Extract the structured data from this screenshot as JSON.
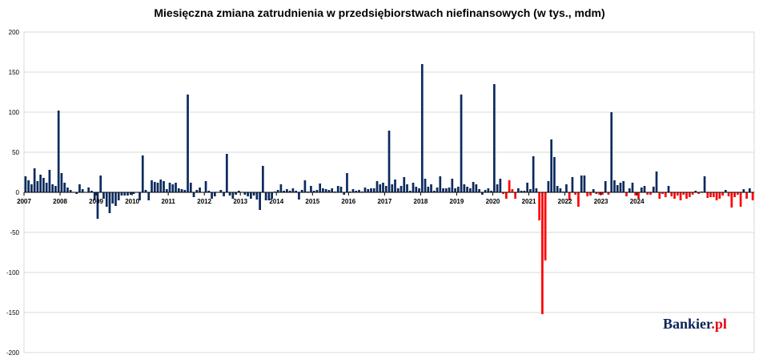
{
  "chart_data": {
    "type": "bar",
    "title": "Miesięczna zmiana zatrudnienia w przedsiębiorstwach niefinansowych (w tys., mdm)",
    "ylim": [
      -200,
      200
    ],
    "yticks": [
      200,
      150,
      100,
      50,
      0,
      -50,
      -100,
      -150,
      -200
    ],
    "year_labels": [
      "2007",
      "2008",
      "2009",
      "2010",
      "2011",
      "2012",
      "2013",
      "2014",
      "2015",
      "2016",
      "2017",
      "2018",
      "2019",
      "2020",
      "2021",
      "2022",
      "2023",
      "2024"
    ],
    "start": "2007-01",
    "grid": true,
    "colors": {
      "positive_main": "#0b2a5e",
      "recent": "#ff0000"
    },
    "series": [
      {
        "values": [
          20,
          15,
          10,
          30,
          14,
          22,
          18,
          12,
          28,
          10,
          8,
          102,
          24,
          12,
          6,
          3,
          0,
          -2,
          10,
          4,
          0,
          6,
          2,
          -10,
          -33,
          21,
          -8,
          -18,
          -26,
          -14,
          -17,
          -10,
          -4,
          -4,
          -4,
          -3,
          -2,
          0,
          -10,
          46,
          3,
          -10,
          15,
          13,
          12,
          16,
          14,
          4,
          12,
          10,
          12,
          5,
          4,
          3,
          122,
          12,
          -6,
          3,
          6,
          0,
          14,
          2,
          -8,
          -5,
          0,
          3,
          -5,
          48,
          -4,
          -8,
          -3,
          2,
          0,
          -3,
          -5,
          -8,
          -4,
          -9,
          -22,
          33,
          -10,
          -10,
          -8,
          1,
          3,
          10,
          2,
          4,
          2,
          5,
          2,
          -9,
          3,
          15,
          1,
          8,
          2,
          3,
          11,
          5,
          4,
          3,
          5,
          1,
          8,
          7,
          -3,
          24,
          1,
          4,
          2,
          3,
          1,
          6,
          4,
          5,
          5,
          14,
          10,
          12,
          8,
          77,
          10,
          16,
          5,
          8,
          19,
          10,
          2,
          12,
          7,
          5,
          160,
          17,
          7,
          10,
          2,
          6,
          20,
          5,
          5,
          6,
          17,
          5,
          7,
          122,
          10,
          7,
          5,
          13,
          10,
          4,
          -3,
          3,
          5,
          2,
          135,
          10,
          17,
          -2,
          -8,
          15,
          4,
          -8,
          5,
          2,
          2,
          12,
          4,
          45,
          5,
          -35,
          -152,
          -85,
          14,
          66,
          44,
          8,
          5,
          1,
          10,
          -10,
          19,
          -3,
          -18,
          21,
          21,
          -5,
          -4,
          4,
          -2,
          -3,
          -3,
          14,
          -3,
          100,
          15,
          9,
          12,
          14,
          -5,
          5,
          12,
          -4,
          -8,
          6,
          8,
          -3,
          -3,
          7,
          26,
          -8,
          -2,
          -6,
          8,
          -5,
          -8,
          -4,
          -10,
          -3,
          -8,
          -6,
          -3,
          2,
          -2,
          1,
          20,
          -7,
          -6,
          -6,
          -10,
          -8,
          -4,
          3,
          -5,
          -19,
          -6,
          -3,
          -18,
          4,
          -8,
          5,
          -10
        ]
      }
    ],
    "red_from_index": 158
  },
  "logo": {
    "text": "Bankier",
    "dot": ".pl"
  }
}
